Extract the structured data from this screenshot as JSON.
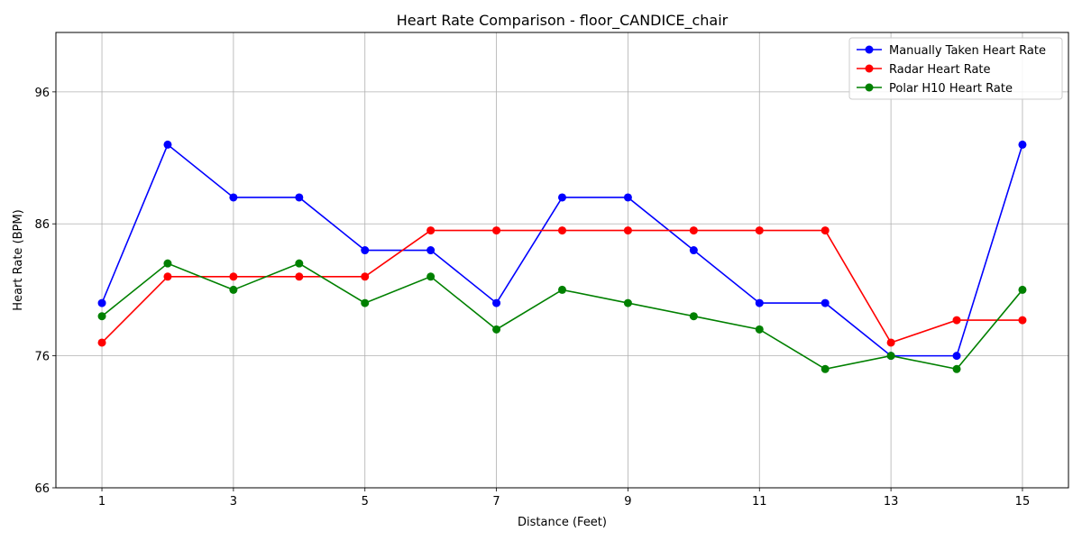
{
  "chart_data": {
    "type": "line",
    "title": "Heart Rate Comparison - floor_CANDICE_chair",
    "xlabel": "Distance (Feet)",
    "ylabel": "Heart Rate (BPM)",
    "x": [
      1,
      2,
      3,
      4,
      5,
      6,
      7,
      8,
      9,
      10,
      11,
      12,
      13,
      14,
      15
    ],
    "xlim": [
      0.3,
      15.7
    ],
    "ylim": [
      66,
      100.5
    ],
    "xticks": [
      1,
      3,
      5,
      7,
      9,
      11,
      13,
      15
    ],
    "yticks": [
      66,
      76,
      86,
      96
    ],
    "grid": true,
    "legend_position": "top-right",
    "series": [
      {
        "name": "Manually Taken Heart Rate",
        "color": "#0000ff",
        "values": [
          80,
          92,
          88,
          88,
          84,
          84,
          80,
          88,
          88,
          84,
          80,
          80,
          76,
          76,
          92
        ]
      },
      {
        "name": "Radar Heart Rate",
        "color": "#ff0000",
        "values": [
          77,
          82,
          82,
          82,
          82,
          85.5,
          85.5,
          85.5,
          85.5,
          85.5,
          85.5,
          85.5,
          77,
          78.7,
          78.7
        ]
      },
      {
        "name": "Polar H10 Heart Rate",
        "color": "#008000",
        "values": [
          79,
          83,
          81,
          83,
          80,
          82,
          78,
          81,
          80,
          79,
          78,
          75,
          76,
          75,
          81
        ]
      }
    ]
  }
}
